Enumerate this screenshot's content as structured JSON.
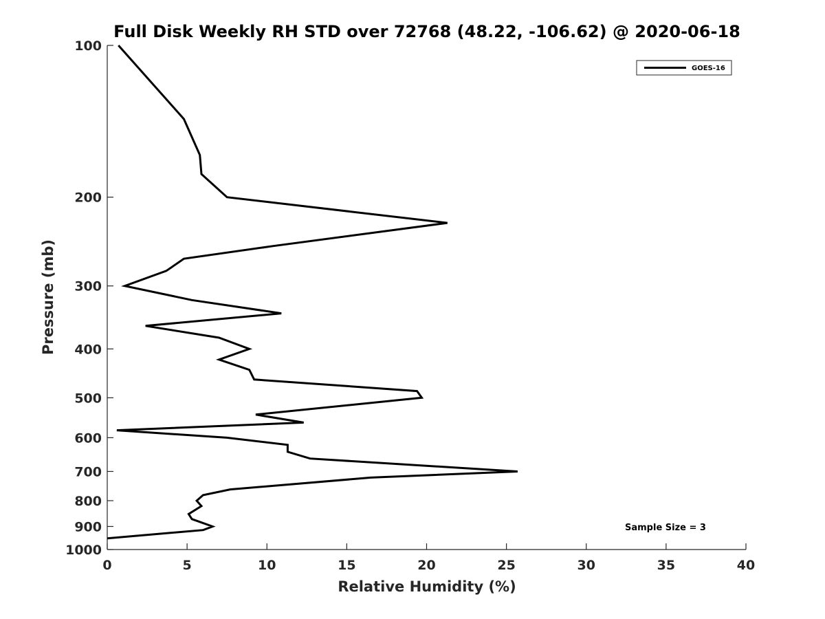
{
  "chart_data": {
    "type": "line",
    "title": "Full Disk Weekly RH STD over 72768 (48.22, -106.62) @ 2020-06-18",
    "xlabel": "Relative Humidity (%)",
    "ylabel": "Pressure (mb)",
    "xlim": [
      0,
      40
    ],
    "ylim": [
      100,
      1000
    ],
    "y_scale": "log",
    "y_reversed": true,
    "xticks": [
      0,
      5,
      10,
      15,
      20,
      25,
      30,
      35,
      40
    ],
    "xtick_labels": [
      "0",
      "5",
      "10",
      "15",
      "20",
      "25",
      "30",
      "35",
      "40"
    ],
    "yticks": [
      100,
      200,
      300,
      400,
      500,
      600,
      700,
      800,
      900,
      1000
    ],
    "ytick_labels": [
      "100",
      "200",
      "300",
      "400",
      "500",
      "600",
      "700",
      "800",
      "900",
      "1000"
    ],
    "grid": false,
    "legend_position": "top-right",
    "annotation": "Sample Size = 3",
    "colors": {
      "line": "#000000",
      "axis": "#262626"
    },
    "series": [
      {
        "name": "GOES-16",
        "points": [
          [
            0.7,
            100
          ],
          [
            4.8,
            140
          ],
          [
            5.8,
            165
          ],
          [
            5.9,
            180
          ],
          [
            7.5,
            200
          ],
          [
            21.3,
            225
          ],
          [
            10.4,
            250
          ],
          [
            4.8,
            265
          ],
          [
            3.7,
            280
          ],
          [
            1.1,
            300
          ],
          [
            5.3,
            320
          ],
          [
            10.9,
            340
          ],
          [
            2.4,
            360
          ],
          [
            7.0,
            380
          ],
          [
            8.9,
            400
          ],
          [
            7.0,
            420
          ],
          [
            8.9,
            440
          ],
          [
            9.2,
            460
          ],
          [
            19.4,
            485
          ],
          [
            19.7,
            500
          ],
          [
            9.3,
            540
          ],
          [
            12.3,
            560
          ],
          [
            0.6,
            580
          ],
          [
            7.5,
            600
          ],
          [
            11.3,
            620
          ],
          [
            11.3,
            640
          ],
          [
            12.7,
            660
          ],
          [
            25.7,
            700
          ],
          [
            16.5,
            720
          ],
          [
            7.7,
            760
          ],
          [
            6.0,
            780
          ],
          [
            5.6,
            800
          ],
          [
            5.9,
            820
          ],
          [
            5.1,
            850
          ],
          [
            5.3,
            870
          ],
          [
            6.6,
            900
          ],
          [
            6.0,
            915
          ],
          [
            0.0,
            950
          ]
        ]
      }
    ]
  }
}
